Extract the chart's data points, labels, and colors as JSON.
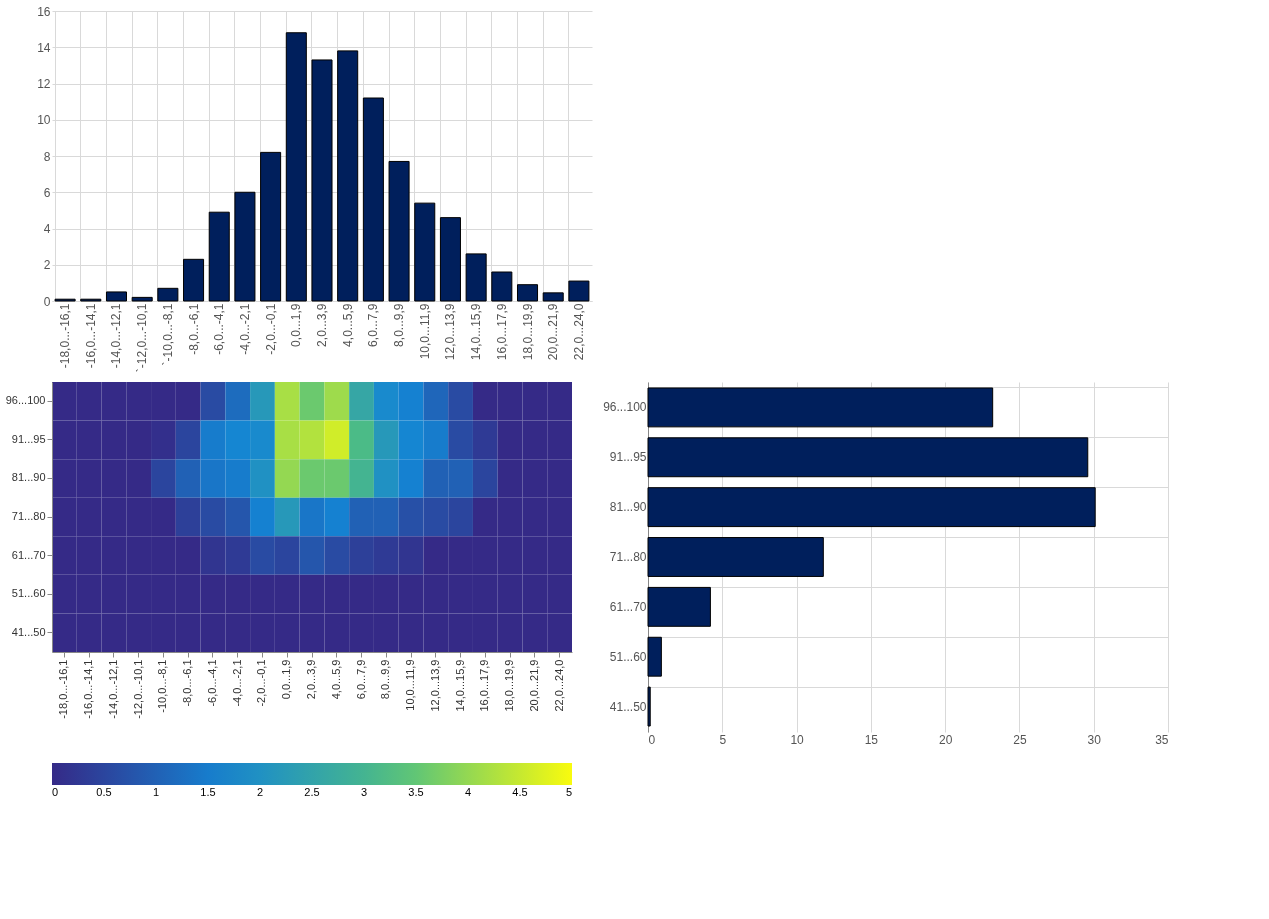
{
  "chart_data": [
    {
      "type": "bar",
      "categories": [
        "-18,0...-16,1",
        "-16,0...-14,1",
        "-14,0...-12,1",
        "`-12,0...-10,1",
        "`-10,0...-8,1",
        "-8,0...-6,1",
        "-6,0...-4,1",
        "-4,0...-2,1",
        "-2,0...-0,1",
        "0,0...1,9",
        "2,0...3,9",
        "4,0...5,9",
        "6,0...7,9",
        "8,0...9,9",
        "10,0...11,9",
        "12,0...13,9",
        "14,0...15,9",
        "16,0...17,9",
        "18,0...19,9",
        "20,0...21,9",
        "22,0...24,0"
      ],
      "values": [
        0.1,
        0.1,
        0.5,
        0.2,
        0.7,
        2.3,
        4.9,
        6.0,
        8.2,
        14.8,
        13.3,
        13.8,
        11.2,
        7.7,
        5.4,
        4.6,
        2.6,
        1.6,
        0.9,
        0.45,
        1.1
      ],
      "color": "#001f5c",
      "ylim": [
        0,
        16
      ],
      "yticks": [
        0,
        2,
        4,
        6,
        8,
        10,
        12,
        14,
        16
      ],
      "grid": true
    },
    {
      "type": "heatmap",
      "categories": [
        "-18,0...-16,1",
        "-16,0...-14,1",
        "-14,0...-12,1",
        "-12,0...-10,1",
        "-10,0...-8,1",
        "-8,0...-6,1",
        "-6,0...-4,1",
        "-4,0...-2,1",
        "-2,0...-0,1",
        "0,0...1,9",
        "2,0...3,9",
        "4,0...5,9",
        "6,0...7,9",
        "8,0...9,9",
        "10,0...11,9",
        "12,0...13,9",
        "14,0...15,9",
        "16,0...17,9",
        "18,0...19,9",
        "20,0...21,9",
        "22,0...24,0"
      ],
      "y_categories": [
        "96...100",
        "91...95",
        "81...90",
        "71...80",
        "61...70",
        "51...60",
        "41...50"
      ],
      "cells": [
        [
          0,
          0,
          0,
          0,
          0,
          0,
          0.6,
          1.2,
          2.2,
          4.2,
          3.6,
          4.1,
          2.6,
          1.8,
          1.6,
          1.1,
          0.6,
          0,
          0,
          0,
          0
        ],
        [
          0,
          0,
          0,
          0,
          0.1,
          0.5,
          1.5,
          1.7,
          1.8,
          4.2,
          4.3,
          4.6,
          3.2,
          2.2,
          1.7,
          1.5,
          0.6,
          0.3,
          0,
          0,
          0
        ],
        [
          0,
          0,
          0,
          0,
          0.5,
          1.0,
          1.4,
          1.5,
          2.0,
          4.0,
          3.6,
          3.6,
          3.0,
          2.0,
          1.6,
          1.0,
          1.0,
          0.5,
          0,
          0,
          0
        ],
        [
          0,
          0,
          0,
          0,
          0,
          0.4,
          0.6,
          0.8,
          1.6,
          2.2,
          1.4,
          1.6,
          1.0,
          1.0,
          0.7,
          0.6,
          0.5,
          0,
          0,
          0,
          0
        ],
        [
          0,
          0,
          0,
          0,
          0,
          0,
          0.2,
          0.3,
          0.6,
          0.5,
          0.8,
          0.6,
          0.4,
          0.3,
          0.2,
          0,
          0,
          0,
          0,
          0,
          0
        ],
        [
          0,
          0,
          0,
          0,
          0,
          0,
          0,
          0,
          0,
          0,
          0,
          0,
          0,
          0,
          0,
          0,
          0,
          0,
          0,
          0,
          0
        ],
        [
          0,
          0,
          0,
          0,
          0,
          0,
          0,
          0,
          0,
          0,
          0,
          0,
          0,
          0,
          0,
          0,
          0,
          0,
          0,
          0,
          0
        ]
      ],
      "clim": [
        0,
        5
      ],
      "cticks": [
        0,
        0.5,
        1,
        1.5,
        2,
        2.5,
        3,
        3.5,
        4,
        4.5,
        5
      ]
    },
    {
      "type": "bar",
      "orientation": "horizontal",
      "categories": [
        "96...100",
        "91...95",
        "81...90",
        "71...80",
        "61...70",
        "51...60",
        "41...50"
      ],
      "values": [
        23.2,
        29.6,
        30.1,
        11.8,
        4.2,
        0.9,
        0.15
      ],
      "color": "#001f5c",
      "xlim": [
        0,
        35
      ],
      "xticks": [
        0,
        5,
        10,
        15,
        20,
        25,
        30,
        35
      ],
      "grid": true
    }
  ]
}
